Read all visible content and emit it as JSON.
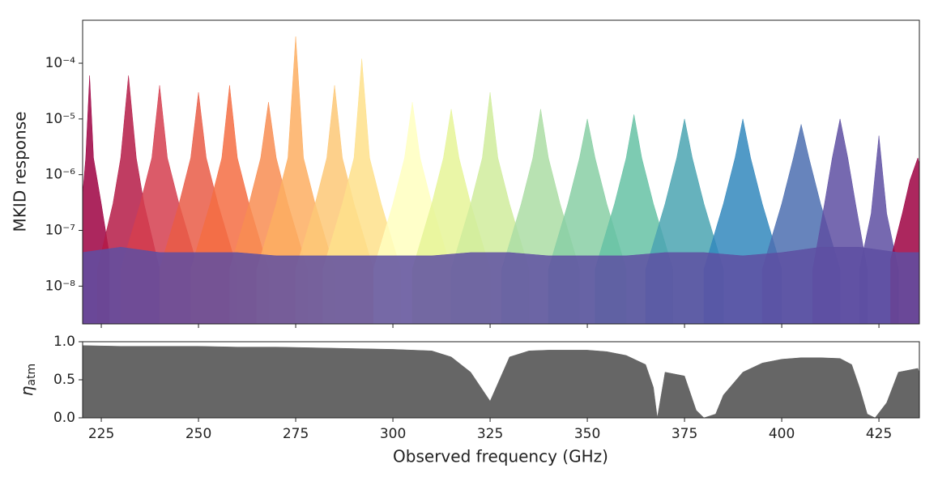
{
  "chart_data": [
    {
      "type": "area",
      "ylabel": "MKID response",
      "log_y": true,
      "xlim": [
        220.2,
        435.4
      ],
      "ylim": [
        2.1e-09,
        0.00059
      ],
      "yticks": [
        {
          "value": 1e-08,
          "label": "10⁻⁸"
        },
        {
          "value": 1e-07,
          "label": "10⁻⁷"
        },
        {
          "value": 1e-06,
          "label": "10⁻⁶"
        },
        {
          "value": 1e-05,
          "label": "10⁻⁵"
        },
        {
          "value": 0.0001,
          "label": "10⁻⁴"
        }
      ],
      "series": [
        {
          "color": "#9e0142",
          "x": [
            220,
            221,
            222,
            223,
            225,
            227
          ],
          "values": [
            3e-07,
            2e-06,
            6e-05,
            2e-06,
            3e-07,
            4e-08
          ]
        },
        {
          "color": "#b51b47",
          "x": [
            224,
            228,
            230,
            232,
            234,
            236,
            240
          ],
          "values": [
            2e-08,
            3e-07,
            2e-06,
            6e-05,
            2e-06,
            3e-07,
            2e-08
          ]
        },
        {
          "color": "#d53e4f",
          "x": [
            230,
            235,
            238,
            240,
            242,
            245,
            250
          ],
          "values": [
            2e-08,
            3e-07,
            2e-06,
            4e-05,
            2e-06,
            3e-07,
            2e-08
          ]
        },
        {
          "color": "#e95c47",
          "x": [
            240,
            245,
            248,
            250,
            252,
            255,
            260
          ],
          "values": [
            2e-08,
            3e-07,
            2e-06,
            3e-05,
            2e-06,
            3e-07,
            2e-08
          ]
        },
        {
          "color": "#f46d43",
          "x": [
            248,
            253,
            256,
            258,
            260,
            263,
            268
          ],
          "values": [
            2e-08,
            3e-07,
            2e-06,
            4e-05,
            2e-06,
            3e-07,
            2e-08
          ]
        },
        {
          "color": "#f88d52",
          "x": [
            258,
            263,
            266,
            268,
            270,
            273,
            278
          ],
          "values": [
            2e-08,
            3e-07,
            2e-06,
            2e-05,
            2e-06,
            3e-07,
            2e-08
          ]
        },
        {
          "color": "#fdae61",
          "x": [
            265,
            270,
            273,
            275,
            277,
            280,
            285
          ],
          "values": [
            2e-08,
            3e-07,
            2e-06,
            0.0003,
            2e-06,
            3e-07,
            2e-08
          ]
        },
        {
          "color": "#fdc877",
          "x": [
            275,
            280,
            283,
            285,
            287,
            290,
            295
          ],
          "values": [
            2e-08,
            3e-07,
            2e-06,
            4e-05,
            2e-06,
            3e-07,
            2e-08
          ]
        },
        {
          "color": "#fee08b",
          "x": [
            282,
            287,
            290,
            292,
            294,
            297,
            302
          ],
          "values": [
            2e-08,
            3e-07,
            2e-06,
            0.00012,
            2e-06,
            3e-07,
            2e-08
          ]
        },
        {
          "color": "#ffffbf",
          "x": [
            295,
            300,
            303,
            305,
            307,
            310,
            315
          ],
          "values": [
            2e-08,
            3e-07,
            2e-06,
            2e-05,
            2e-06,
            3e-07,
            2e-08
          ]
        },
        {
          "color": "#e6f598",
          "x": [
            305,
            310,
            313,
            315,
            317,
            320,
            325
          ],
          "values": [
            2e-08,
            3e-07,
            2e-06,
            1.5e-05,
            2e-06,
            3e-07,
            2e-08
          ]
        },
        {
          "color": "#d0ec9c",
          "x": [
            315,
            320,
            323,
            325,
            327,
            330,
            335
          ],
          "values": [
            2e-08,
            3e-07,
            2e-06,
            3e-05,
            2e-06,
            3e-07,
            2e-08
          ]
        },
        {
          "color": "#abdda4",
          "x": [
            328,
            333,
            336,
            338,
            340,
            343,
            348
          ],
          "values": [
            2e-08,
            3e-07,
            2e-06,
            1.5e-05,
            2e-06,
            3e-07,
            2e-08
          ]
        },
        {
          "color": "#88cfa4",
          "x": [
            340,
            345,
            348,
            350,
            352,
            355,
            360
          ],
          "values": [
            2e-08,
            3e-07,
            2e-06,
            1e-05,
            2e-06,
            3e-07,
            2e-08
          ]
        },
        {
          "color": "#66c2a5",
          "x": [
            352,
            357,
            360,
            362,
            364,
            367,
            372
          ],
          "values": [
            2e-08,
            3e-07,
            2e-06,
            1.2e-05,
            2e-06,
            3e-07,
            2e-08
          ]
        },
        {
          "color": "#4ba4b1",
          "x": [
            365,
            370,
            373,
            375,
            377,
            380,
            385
          ],
          "values": [
            2e-08,
            3e-07,
            2e-06,
            1e-05,
            2e-06,
            3e-07,
            2e-08
          ]
        },
        {
          "color": "#3288bd",
          "x": [
            380,
            385,
            388,
            390,
            392,
            395,
            400
          ],
          "values": [
            2e-08,
            3e-07,
            2e-06,
            1e-05,
            2e-06,
            3e-07,
            2e-08
          ]
        },
        {
          "color": "#4c6fb0",
          "x": [
            395,
            400,
            403,
            405,
            407,
            410,
            415
          ],
          "values": [
            2e-08,
            3e-07,
            2e-06,
            8e-06,
            2e-06,
            3e-07,
            2e-08
          ]
        },
        {
          "color": "#5e4fa2",
          "x": [
            408,
            411,
            413,
            415,
            417,
            419,
            422
          ],
          "values": [
            2e-08,
            3e-07,
            2e-06,
            1e-05,
            2e-06,
            3e-07,
            2e-08
          ]
        },
        {
          "color": "#5e4fa2",
          "x": [
            420,
            423,
            424,
            425,
            426,
            427,
            430
          ],
          "values": [
            2e-08,
            2e-07,
            1e-06,
            5e-06,
            1e-06,
            2e-07,
            2e-08
          ]
        },
        {
          "color": "#9e0142",
          "x": [
            428,
            431,
            433,
            435,
            436
          ],
          "values": [
            3e-08,
            2e-07,
            8e-07,
            2e-06,
            1e-06
          ]
        },
        {
          "color": "#5e4fa2",
          "x": [
            220,
            230,
            240,
            250,
            260,
            270,
            280,
            290,
            300,
            310,
            320,
            330,
            340,
            350,
            360,
            370,
            380,
            390,
            400,
            410,
            420,
            430,
            436
          ],
          "values": [
            4e-08,
            5e-08,
            4e-08,
            4e-08,
            4e-08,
            3.5e-08,
            3.5e-08,
            3.5e-08,
            3.5e-08,
            3.5e-08,
            4e-08,
            4e-08,
            3.5e-08,
            3.5e-08,
            3.5e-08,
            4e-08,
            4e-08,
            3.5e-08,
            4e-08,
            5e-08,
            5e-08,
            4e-08,
            4e-08
          ]
        }
      ]
    },
    {
      "type": "area",
      "ylabel": "η",
      "ylabel_sub": "atm",
      "xlabel": "Observed frequency (GHz)",
      "xlim": [
        220.2,
        435.4
      ],
      "ylim": [
        0,
        1
      ],
      "xticks": [
        225,
        250,
        275,
        300,
        325,
        350,
        375,
        400,
        425
      ],
      "yticks": [
        {
          "value": 0,
          "label": "0.0"
        },
        {
          "value": 0.5,
          "label": "0.5"
        },
        {
          "value": 1,
          "label": "1.0"
        }
      ],
      "series": [
        {
          "color": "#666666",
          "x": [
            220,
            230,
            240,
            250,
            260,
            270,
            280,
            290,
            300,
            310,
            315,
            320,
            325,
            330,
            335,
            340,
            350,
            355,
            360,
            365,
            367,
            368,
            370,
            375,
            378,
            380,
            383,
            385,
            390,
            395,
            400,
            405,
            410,
            415,
            418,
            420,
            422,
            424,
            427,
            430,
            435,
            436
          ],
          "values": [
            0.95,
            0.94,
            0.94,
            0.94,
            0.93,
            0.93,
            0.92,
            0.91,
            0.9,
            0.88,
            0.8,
            0.6,
            0.22,
            0.8,
            0.88,
            0.89,
            0.89,
            0.87,
            0.82,
            0.7,
            0.4,
            0.0,
            0.6,
            0.55,
            0.1,
            0.0,
            0.05,
            0.3,
            0.6,
            0.72,
            0.77,
            0.79,
            0.79,
            0.78,
            0.7,
            0.4,
            0.05,
            0.0,
            0.2,
            0.6,
            0.65,
            0.5
          ]
        }
      ]
    }
  ]
}
